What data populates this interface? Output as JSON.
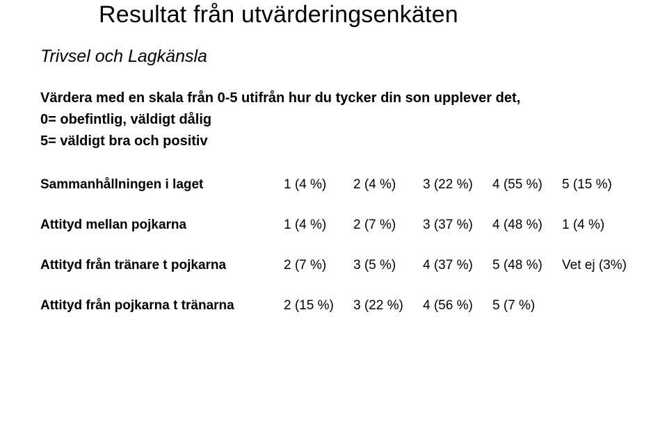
{
  "title": "Resultat från utvärderingsenkäten",
  "subtitle": "Trivsel och Lagkänsla",
  "instruction_line1": "Värdera med en skala från 0-5 utifrån hur du tycker din son upplever det,",
  "instruction_line2": "0= obefintlig, väldigt dålig",
  "instruction_line3": "5= väldigt bra och positiv",
  "rows": [
    {
      "label": "Sammanhållningen i laget",
      "cells": [
        "1 (4 %)",
        "2 (4 %)",
        "3 (22 %)",
        "4 (55 %)",
        "5 (15 %)"
      ]
    },
    {
      "label": "Attityd mellan pojkarna",
      "cells": [
        "1 (4 %)",
        "2 (7 %)",
        "3 (37 %)",
        "4 (48 %)",
        "1 (4 %)"
      ]
    },
    {
      "label": "Attityd från tränare t pojkarna",
      "cells": [
        "2 (7 %)",
        "3 (5 %)",
        "4 (37 %)",
        "5 (48 %)",
        "Vet ej (3%)"
      ]
    },
    {
      "label": "Attityd från pojkarna t tränarna",
      "cells": [
        "2 (15 %)",
        "3 (22 %)",
        "4 (56 %)",
        "5 (7 %)",
        ""
      ]
    }
  ]
}
